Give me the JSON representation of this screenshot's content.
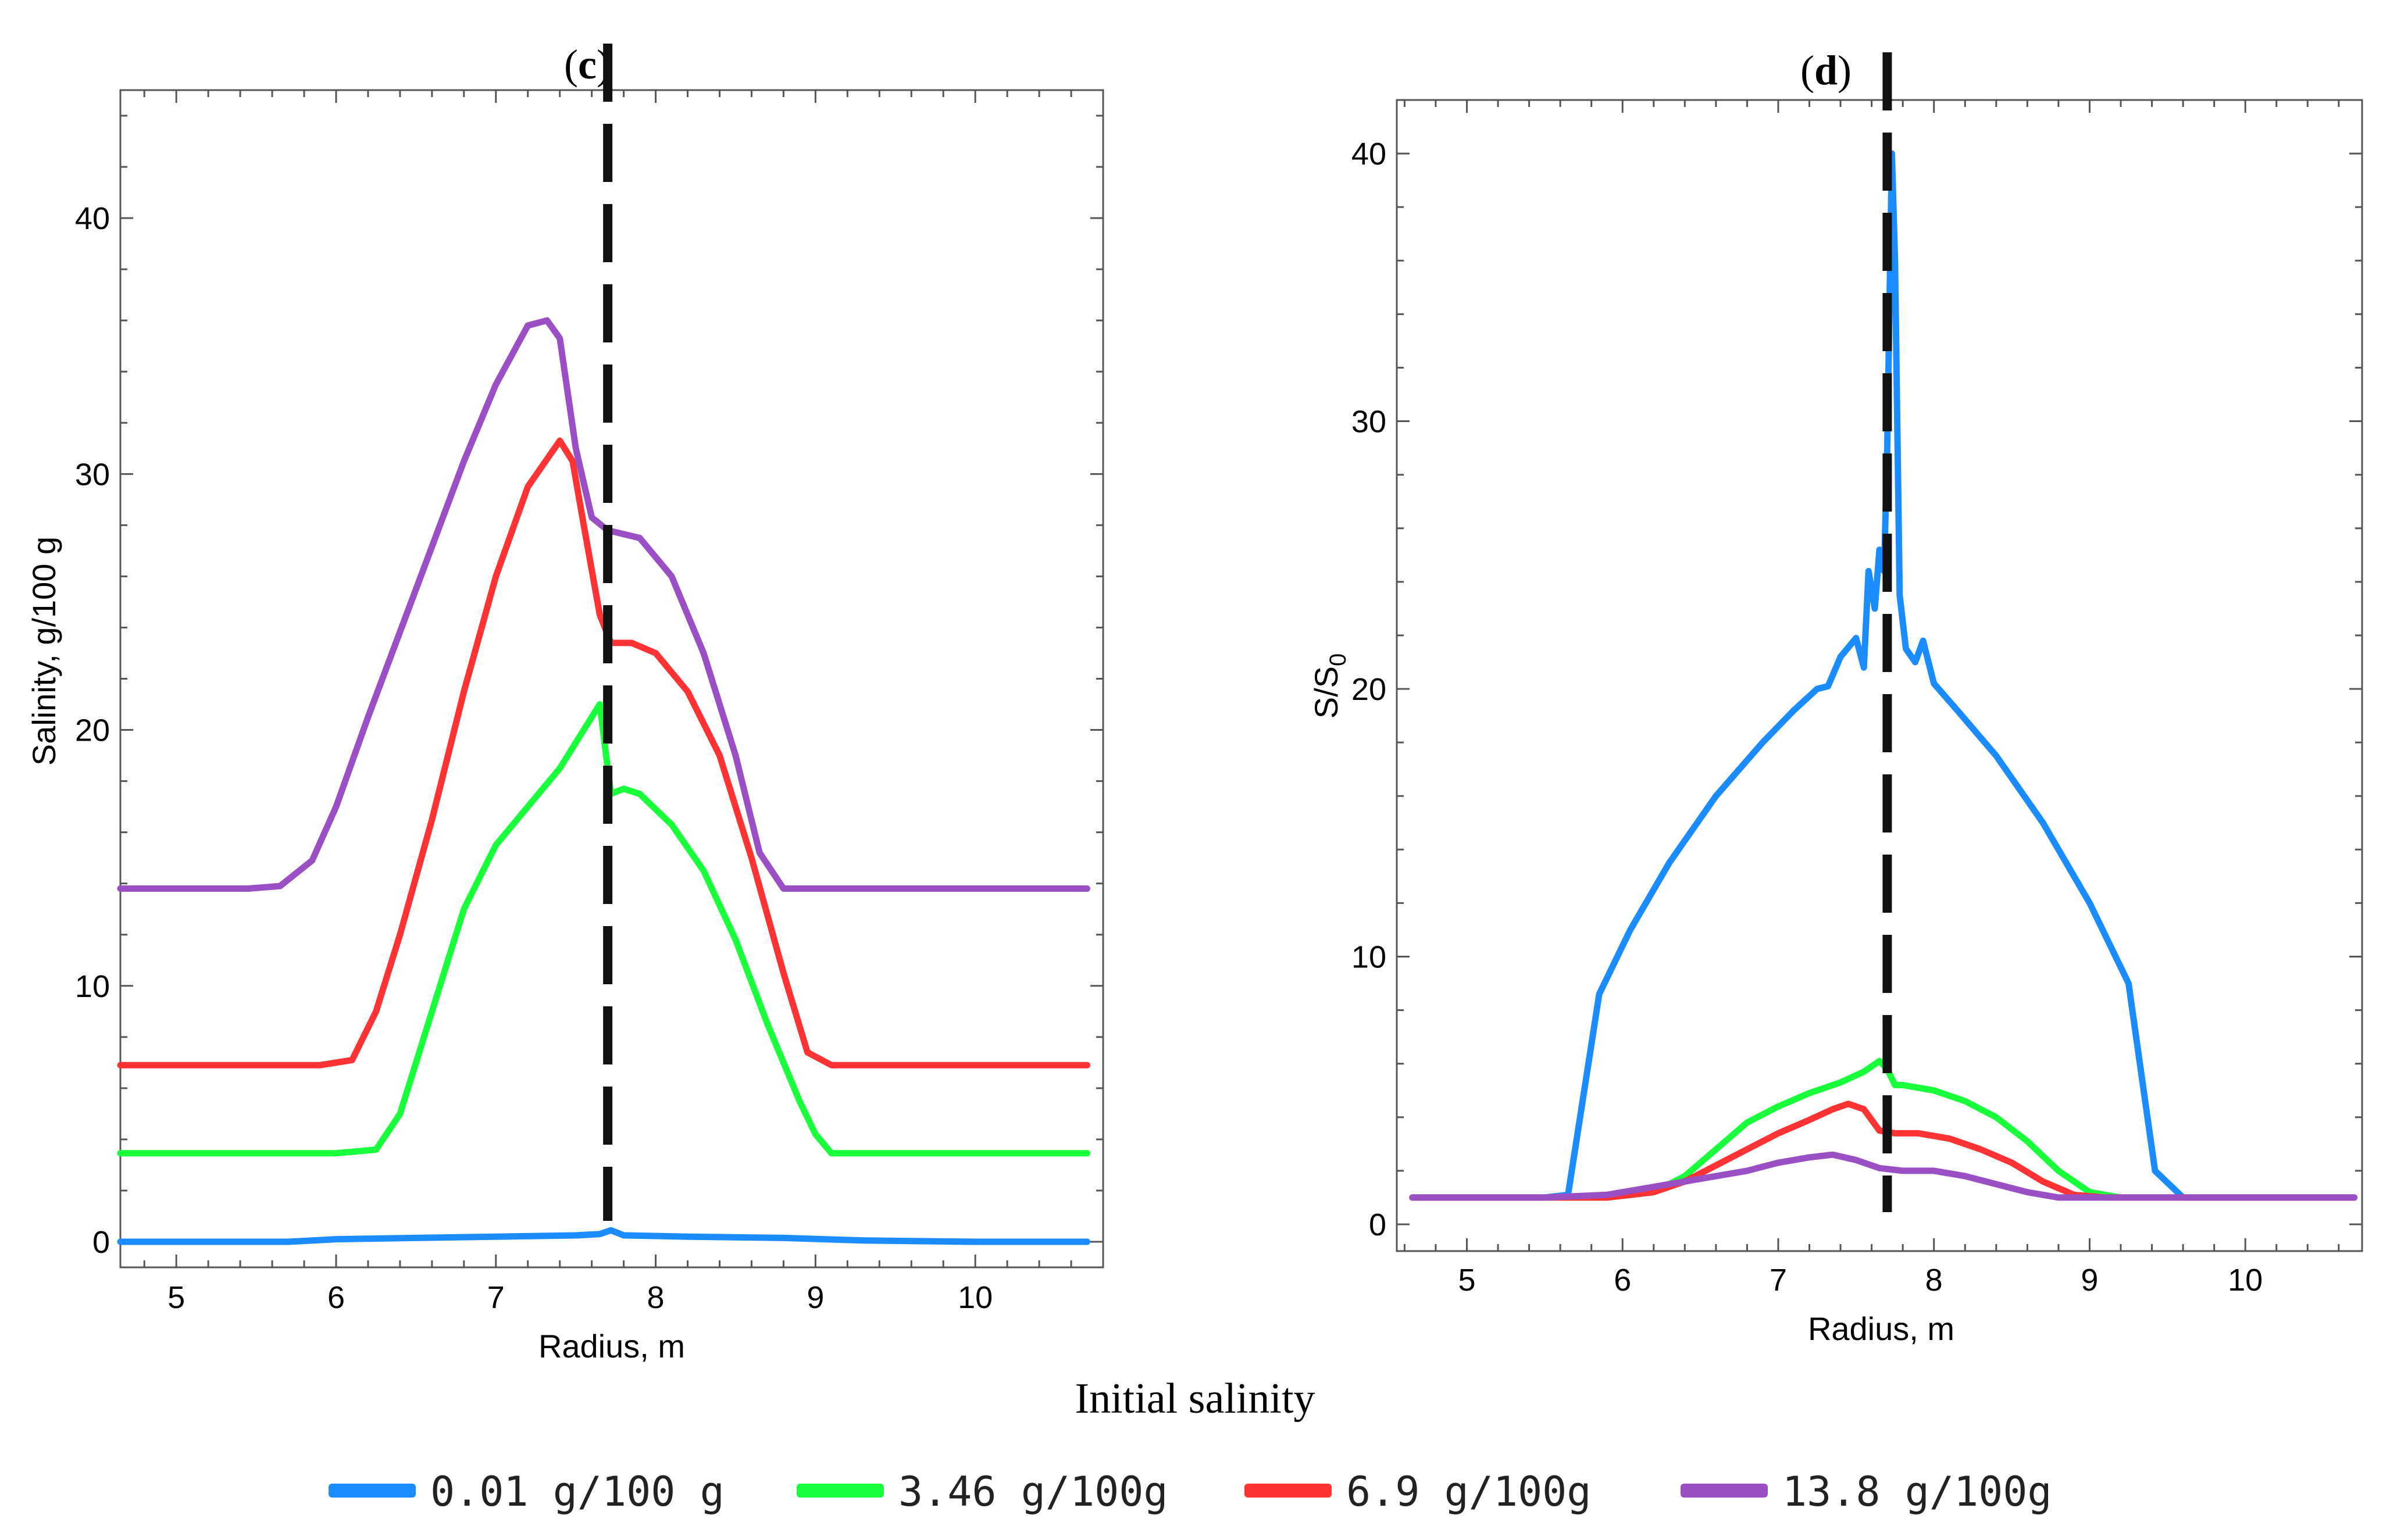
{
  "figure": {
    "legend_title": "Initial salinity"
  },
  "colors": {
    "blue": "#1a8cff",
    "green": "#1aff3c",
    "red": "#ff3333",
    "purple": "#9a4fc4",
    "dash": "#111111",
    "axis": "#555555"
  },
  "legend": [
    {
      "label": "0.01 g/100 g",
      "color": "#1a8cff"
    },
    {
      "label": "3.46 g/100g",
      "color": "#1aff3c"
    },
    {
      "label": "6.9 g/100g",
      "color": "#ff3333"
    },
    {
      "label": "13.8 g/100g",
      "color": "#9a4fc4"
    }
  ],
  "chart_data": [
    {
      "type": "line",
      "panel_label": "c",
      "xlabel": "Radius, m",
      "ylabel": "Salinity, g/100 g",
      "xlim": [
        4.65,
        10.8
      ],
      "ylim": [
        -1,
        45
      ],
      "xticks": [
        "5",
        "6",
        "7",
        "8",
        "9",
        "10"
      ],
      "yticks": [
        "0",
        "10",
        "20",
        "30",
        "40"
      ],
      "vline_x": 7.7,
      "series": [
        {
          "name": "0.01 g/100 g",
          "color": "#1a8cff",
          "x": [
            4.65,
            5.7,
            6.0,
            6.5,
            7.0,
            7.5,
            7.65,
            7.72,
            7.8,
            8.2,
            8.8,
            9.3,
            10.0,
            10.7
          ],
          "y": [
            0.0,
            0.0,
            0.1,
            0.15,
            0.2,
            0.25,
            0.3,
            0.45,
            0.25,
            0.2,
            0.15,
            0.05,
            0.0,
            0.0
          ]
        },
        {
          "name": "3.46 g/100g",
          "color": "#1aff3c",
          "x": [
            4.65,
            6.0,
            6.25,
            6.4,
            6.6,
            6.8,
            7.0,
            7.2,
            7.4,
            7.55,
            7.65,
            7.72,
            7.8,
            7.9,
            8.1,
            8.3,
            8.5,
            8.7,
            8.9,
            9.0,
            9.1,
            10.7
          ],
          "y": [
            3.46,
            3.46,
            3.6,
            5.0,
            9.0,
            13.0,
            15.5,
            17.0,
            18.5,
            20.0,
            21.0,
            17.5,
            17.7,
            17.5,
            16.3,
            14.5,
            11.8,
            8.5,
            5.5,
            4.2,
            3.46,
            3.46
          ]
        },
        {
          "name": "6.9 g/100g",
          "color": "#ff3333",
          "x": [
            4.65,
            5.9,
            6.1,
            6.25,
            6.4,
            6.6,
            6.8,
            7.0,
            7.2,
            7.4,
            7.48,
            7.55,
            7.65,
            7.72,
            7.85,
            8.0,
            8.2,
            8.4,
            8.6,
            8.8,
            8.95,
            9.1,
            10.7
          ],
          "y": [
            6.9,
            6.9,
            7.1,
            9.0,
            12.0,
            16.5,
            21.5,
            26.0,
            29.5,
            31.3,
            30.5,
            28.0,
            24.5,
            23.4,
            23.4,
            23.0,
            21.5,
            19.0,
            15.0,
            10.5,
            7.4,
            6.9,
            6.9
          ]
        },
        {
          "name": "13.8 g/100g",
          "color": "#9a4fc4",
          "x": [
            4.65,
            5.45,
            5.65,
            5.85,
            6.0,
            6.2,
            6.5,
            6.8,
            7.0,
            7.2,
            7.32,
            7.4,
            7.5,
            7.6,
            7.7,
            7.9,
            8.1,
            8.3,
            8.5,
            8.65,
            8.8,
            10.7
          ],
          "y": [
            13.8,
            13.8,
            13.9,
            14.9,
            17.0,
            20.5,
            25.5,
            30.5,
            33.5,
            35.8,
            36.0,
            35.3,
            31.0,
            28.3,
            27.8,
            27.5,
            26.0,
            23.0,
            19.0,
            15.2,
            13.8,
            13.8
          ]
        }
      ]
    },
    {
      "type": "line",
      "panel_label": "d",
      "xlabel": "Radius, m",
      "ylabel": "S/S",
      "ylabel_subscript": "0",
      "xlim": [
        4.55,
        10.75
      ],
      "ylim": [
        -1,
        42
      ],
      "xticks": [
        "5",
        "6",
        "7",
        "8",
        "9",
        "10"
      ],
      "yticks": [
        "0",
        "10",
        "20",
        "30",
        "40"
      ],
      "vline_x": 7.7,
      "series": [
        {
          "name": "0.01 g/100 g",
          "color": "#1a8cff",
          "x": [
            4.65,
            5.5,
            5.65,
            5.85,
            6.05,
            6.3,
            6.6,
            6.9,
            7.1,
            7.25,
            7.32,
            7.4,
            7.5,
            7.55,
            7.58,
            7.62,
            7.65,
            7.68,
            7.7,
            7.73,
            7.75,
            7.78,
            7.82,
            7.88,
            7.93,
            8.0,
            8.15,
            8.4,
            8.7,
            9.0,
            9.25,
            9.42,
            9.6,
            10.7
          ],
          "y": [
            1.0,
            1.0,
            1.1,
            8.6,
            11.0,
            13.5,
            16.0,
            18.0,
            19.2,
            20.0,
            20.1,
            21.2,
            21.9,
            20.8,
            24.4,
            23.0,
            25.2,
            24.4,
            29.0,
            40.0,
            36.0,
            23.5,
            21.5,
            21.0,
            21.8,
            20.2,
            19.2,
            17.5,
            15.0,
            12.0,
            9.0,
            2.0,
            1.0,
            1.0
          ]
        },
        {
          "name": "3.46 g/100g",
          "color": "#1aff3c",
          "x": [
            4.65,
            5.9,
            6.2,
            6.4,
            6.6,
            6.8,
            7.0,
            7.2,
            7.4,
            7.55,
            7.65,
            7.7,
            7.75,
            7.8,
            8.0,
            8.2,
            8.4,
            8.6,
            8.8,
            9.0,
            9.2,
            10.7
          ],
          "y": [
            1.0,
            1.0,
            1.2,
            1.8,
            2.8,
            3.8,
            4.4,
            4.9,
            5.3,
            5.7,
            6.1,
            5.8,
            5.2,
            5.2,
            5.0,
            4.6,
            4.0,
            3.1,
            2.0,
            1.2,
            1.0,
            1.0
          ]
        },
        {
          "name": "6.9 g/100g",
          "color": "#ff3333",
          "x": [
            4.65,
            5.9,
            6.2,
            6.4,
            6.6,
            6.8,
            7.0,
            7.2,
            7.35,
            7.45,
            7.55,
            7.65,
            7.75,
            7.9,
            8.1,
            8.3,
            8.5,
            8.7,
            8.9,
            9.1,
            10.7
          ],
          "y": [
            1.0,
            1.0,
            1.2,
            1.6,
            2.2,
            2.8,
            3.4,
            3.9,
            4.3,
            4.5,
            4.3,
            3.5,
            3.4,
            3.4,
            3.2,
            2.8,
            2.3,
            1.6,
            1.1,
            1.0,
            1.0
          ]
        },
        {
          "name": "13.8 g/100g",
          "color": "#9a4fc4",
          "x": [
            4.65,
            5.5,
            5.9,
            6.2,
            6.5,
            6.8,
            7.0,
            7.2,
            7.35,
            7.5,
            7.65,
            7.8,
            8.0,
            8.2,
            8.4,
            8.6,
            8.8,
            9.0,
            10.7
          ],
          "y": [
            1.0,
            1.0,
            1.1,
            1.4,
            1.7,
            2.0,
            2.3,
            2.5,
            2.6,
            2.4,
            2.1,
            2.0,
            2.0,
            1.8,
            1.5,
            1.2,
            1.0,
            1.0,
            1.0
          ]
        }
      ]
    }
  ]
}
